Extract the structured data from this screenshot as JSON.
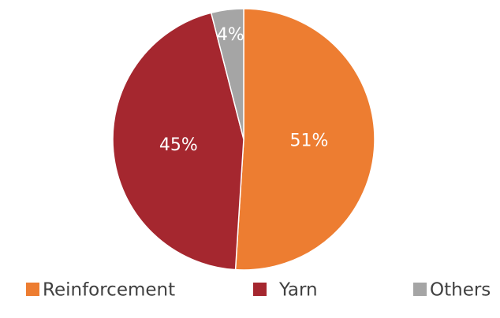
{
  "chart_data": {
    "type": "pie",
    "categories": [
      "Reinforcement",
      "Yarn",
      "Others"
    ],
    "values": [
      51,
      45,
      4
    ],
    "value_labels": [
      "51%",
      "45%",
      "4%"
    ],
    "colors": [
      "#ED7D31",
      "#A5272F",
      "#A5A5A5"
    ],
    "legend": "bottom"
  }
}
